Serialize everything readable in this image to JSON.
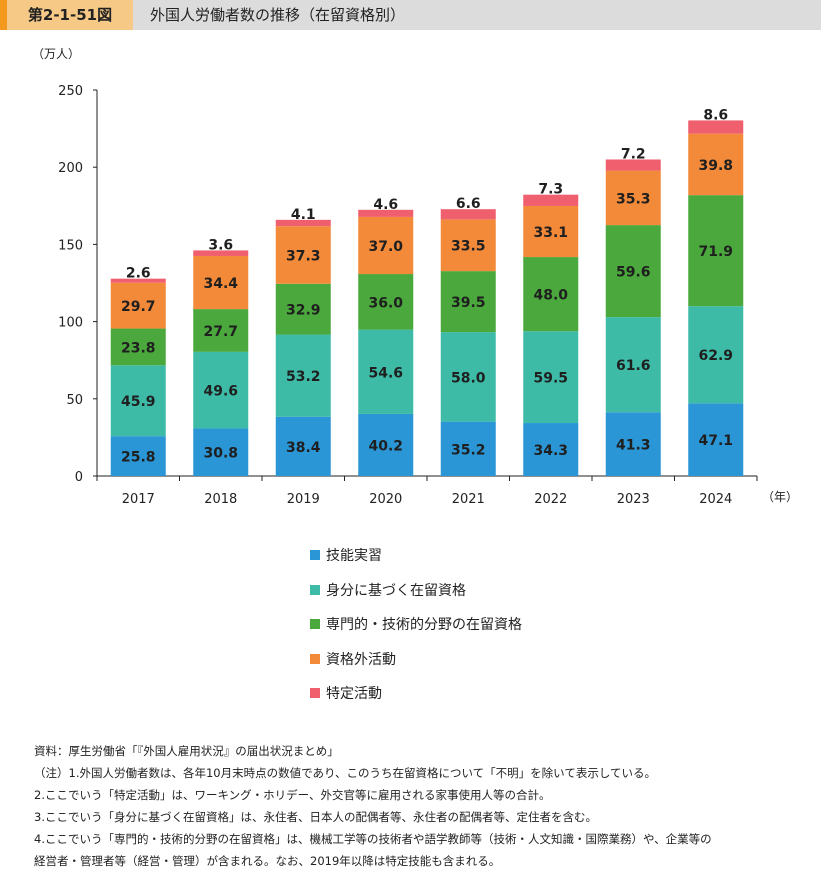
{
  "header": {
    "figure_number": "第2-1-51図",
    "title": "外国人労働者数の推移（在留資格別）"
  },
  "colors": {
    "technical_intern": "#2a96d6",
    "status_based": "#3dbba7",
    "professional": "#4aa83c",
    "other_activities": "#f28a3a",
    "designated": "#ef5f6e"
  },
  "chart_data": {
    "type": "bar",
    "stacked": true,
    "categories": [
      "2017",
      "2018",
      "2019",
      "2020",
      "2021",
      "2022",
      "2023",
      "2024"
    ],
    "yunit": "（万人）",
    "xunit": "（年）",
    "ylim": [
      0,
      250
    ],
    "yticks": [
      0,
      50,
      100,
      150,
      200,
      250
    ],
    "grid": false,
    "legend_position": "bottom",
    "series": [
      {
        "name": "技能実習",
        "color": "#2a96d6",
        "values": [
          25.8,
          30.8,
          38.4,
          40.2,
          35.2,
          34.3,
          41.3,
          47.1
        ]
      },
      {
        "name": "身分に基づく在留資格",
        "color": "#3dbba7",
        "values": [
          45.9,
          49.6,
          53.2,
          54.6,
          58.0,
          59.5,
          61.6,
          62.9
        ]
      },
      {
        "name": "専門的・技術的分野の在留資格",
        "color": "#4aa83c",
        "values": [
          23.8,
          27.7,
          32.9,
          36.0,
          39.5,
          48.0,
          59.6,
          71.9
        ]
      },
      {
        "name": "資格外活動",
        "color": "#f28a3a",
        "values": [
          29.7,
          34.4,
          37.3,
          37.0,
          33.5,
          33.1,
          35.3,
          39.8
        ]
      },
      {
        "name": "特定活動",
        "color": "#ef5f6e",
        "values": [
          2.6,
          3.6,
          4.1,
          4.6,
          6.6,
          7.3,
          7.2,
          8.6
        ]
      }
    ]
  },
  "notes": {
    "source": "資料：厚生労働省「『外国人雇用状況』の届出状況まとめ」",
    "note1": "（注）1.外国人労働者数は、各年10月末時点の数値であり、このうち在留資格について「不明」を除いて表示している。",
    "note2": "2.ここでいう「特定活動」は、ワーキング・ホリデー、外交官等に雇用される家事使用人等の合計。",
    "note3": "3.ここでいう「身分に基づく在留資格」は、永住者、日本人の配偶者等、永住者の配偶者等、定住者を含む。",
    "note4a": "4.ここでいう「専門的・技術的分野の在留資格」は、機械工学等の技術者や語学教師等（技術・人文知識・国際業務）や、企業等の",
    "note4b": "経営者・管理者等（経営・管理）が含まれる。なお、2019年以降は特定技能も含まれる。"
  }
}
